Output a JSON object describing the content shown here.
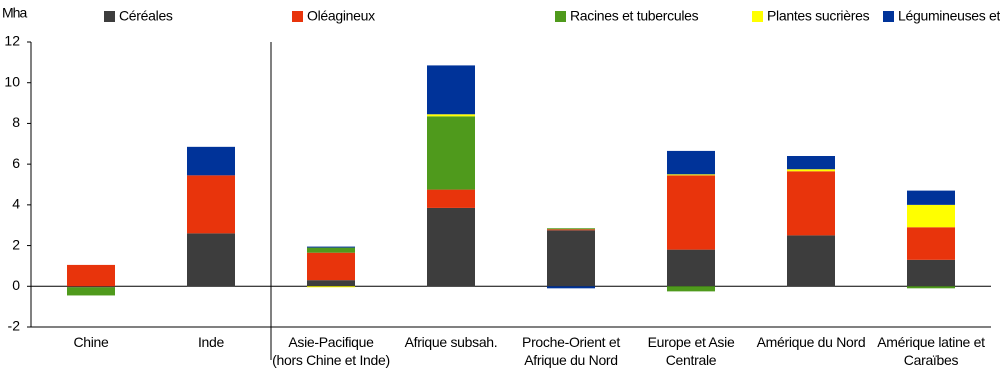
{
  "chart_data": {
    "type": "bar",
    "stacked": true,
    "ylabel": "Mha",
    "categories": [
      "Chine",
      "Inde",
      "Asie-Pacifique (hors Chine et Inde)",
      "Afrique subsah.",
      "Proche-Orient et Afrique du Nord",
      "Europe et Asie Centrale",
      "Amérique du Nord",
      "Amérique latine et Caraïbes"
    ],
    "series": [
      {
        "name": "Céréales",
        "color": "#3d3d3d",
        "values": [
          -0.05,
          2.6,
          0.3,
          3.85,
          2.75,
          1.8,
          2.5,
          1.3
        ]
      },
      {
        "name": "Oléagineux",
        "color": "#e8340c",
        "values": [
          1.05,
          2.85,
          1.35,
          0.9,
          0.05,
          3.65,
          3.15,
          1.6
        ]
      },
      {
        "name": "Racines et tubercules",
        "color": "#4f9a1c",
        "values": [
          -0.4,
          0,
          0.25,
          3.6,
          0.05,
          -0.25,
          0,
          -0.1
        ]
      },
      {
        "name": "Plantes sucrières",
        "color": "#ffff00",
        "values": [
          0,
          0,
          -0.05,
          0.1,
          0,
          0.05,
          0.1,
          1.1
        ]
      },
      {
        "name": "Légumineuses et coton",
        "color": "#003399",
        "values": [
          0,
          1.4,
          0.05,
          2.4,
          -0.1,
          1.15,
          0.65,
          0.7
        ]
      }
    ],
    "ylim": [
      -2,
      12
    ],
    "yticks": [
      -2,
      0,
      2,
      4,
      6,
      8,
      10,
      12
    ],
    "grid": false,
    "legend": "top"
  }
}
